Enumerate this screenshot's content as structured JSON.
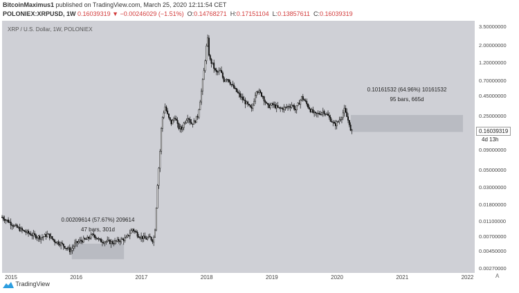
{
  "header": {
    "author": "BitcoinMaximus1",
    "published": " published on TradingView.com, March 25, 2020 12:11:54 CET",
    "symbol": "POLONIEX:XRPUSD, 1W",
    "last": "0.16039319",
    "change": "▼ −0.00246029 (−1.51%)",
    "o_label": "O:",
    "o_val": "0.14768271",
    "h_label": "H:",
    "h_val": "0.17151104",
    "l_label": "L:",
    "l_val": "0.13857611",
    "c_label": "C:",
    "c_val": "0.16039319"
  },
  "chart_data": {
    "type": "candlestick",
    "title": "XRP / U.S. Dollar, 1W, POLONIEX",
    "y_scale": "log",
    "ylim": [
      0.0024,
      4.2
    ],
    "y_ticks": [
      {
        "value": 3.5,
        "label": "3.50000000"
      },
      {
        "value": 2.0,
        "label": "2.00000000"
      },
      {
        "value": 1.2,
        "label": "1.20000000"
      },
      {
        "value": 0.7,
        "label": "0.70000000"
      },
      {
        "value": 0.45,
        "label": "0.45000000"
      },
      {
        "value": 0.25,
        "label": "0.25000000"
      },
      {
        "value": 0.09,
        "label": "0.09000000"
      },
      {
        "value": 0.05,
        "label": "0.05000000"
      },
      {
        "value": 0.03,
        "label": "0.03000000"
      },
      {
        "value": 0.018,
        "label": "0.01800000"
      },
      {
        "value": 0.011,
        "label": "0.01100000"
      },
      {
        "value": 0.007,
        "label": "0.00700000"
      },
      {
        "value": 0.0045,
        "label": "0.00450000"
      },
      {
        "value": 0.0027,
        "label": "0.00270000"
      }
    ],
    "x_ticks": [
      "2015",
      "2016",
      "2017",
      "2018",
      "2019",
      "2020",
      "2021",
      "2022"
    ],
    "x_tick_years": [
      2015.0,
      2016.0,
      2017.0,
      2018.0,
      2019.0,
      2020.0,
      2021.0,
      2022.0
    ],
    "xlim": [
      2014.85,
      2022.1
    ],
    "series": [
      {
        "points": [
          [
            2014.85,
            0.0125
          ],
          [
            2014.95,
            0.011
          ],
          [
            2015.05,
            0.0095
          ],
          [
            2015.15,
            0.0085
          ],
          [
            2015.25,
            0.0078
          ],
          [
            2015.35,
            0.0072
          ],
          [
            2015.45,
            0.0068
          ],
          [
            2015.55,
            0.0075
          ],
          [
            2015.65,
            0.0062
          ],
          [
            2015.75,
            0.0057
          ],
          [
            2015.82,
            0.0052
          ],
          [
            2015.9,
            0.0046
          ],
          [
            2015.97,
            0.0057
          ],
          [
            2016.05,
            0.0062
          ],
          [
            2016.15,
            0.0065
          ],
          [
            2016.25,
            0.0075
          ],
          [
            2016.35,
            0.0062
          ],
          [
            2016.45,
            0.0061
          ],
          [
            2016.55,
            0.0059
          ],
          [
            2016.65,
            0.0063
          ],
          [
            2016.75,
            0.0066
          ],
          [
            2016.85,
            0.0088
          ],
          [
            2016.95,
            0.0072
          ],
          [
            2017.05,
            0.0066
          ],
          [
            2017.12,
            0.0068
          ],
          [
            2017.17,
            0.0062
          ],
          [
            2017.2,
            0.0095
          ],
          [
            2017.23,
            0.03
          ],
          [
            2017.27,
            0.08
          ],
          [
            2017.3,
            0.22
          ],
          [
            2017.35,
            0.33
          ],
          [
            2017.4,
            0.24
          ],
          [
            2017.45,
            0.2
          ],
          [
            2017.5,
            0.25
          ],
          [
            2017.55,
            0.18
          ],
          [
            2017.6,
            0.17
          ],
          [
            2017.65,
            0.21
          ],
          [
            2017.7,
            0.25
          ],
          [
            2017.75,
            0.2
          ],
          [
            2017.8,
            0.21
          ],
          [
            2017.85,
            0.25
          ],
          [
            2017.9,
            0.46
          ],
          [
            2017.95,
            1.0
          ],
          [
            2018.0,
            2.6
          ],
          [
            2018.03,
            1.35
          ],
          [
            2018.08,
            1.15
          ],
          [
            2018.13,
            0.9
          ],
          [
            2018.2,
            0.95
          ],
          [
            2018.25,
            0.72
          ],
          [
            2018.3,
            0.78
          ],
          [
            2018.4,
            0.58
          ],
          [
            2018.5,
            0.45
          ],
          [
            2018.6,
            0.36
          ],
          [
            2018.68,
            0.3
          ],
          [
            2018.75,
            0.55
          ],
          [
            2018.85,
            0.45
          ],
          [
            2018.92,
            0.33
          ],
          [
            2019.0,
            0.35
          ],
          [
            2019.1,
            0.31
          ],
          [
            2019.2,
            0.32
          ],
          [
            2019.3,
            0.35
          ],
          [
            2019.35,
            0.3
          ],
          [
            2019.45,
            0.44
          ],
          [
            2019.5,
            0.38
          ],
          [
            2019.58,
            0.3
          ],
          [
            2019.65,
            0.26
          ],
          [
            2019.72,
            0.27
          ],
          [
            2019.78,
            0.29
          ],
          [
            2019.85,
            0.25
          ],
          [
            2019.9,
            0.22
          ],
          [
            2019.95,
            0.19
          ],
          [
            2020.0,
            0.21
          ],
          [
            2020.05,
            0.24
          ],
          [
            2020.1,
            0.3
          ],
          [
            2020.15,
            0.23
          ],
          [
            2020.18,
            0.2
          ],
          [
            2020.2,
            0.15
          ],
          [
            2020.22,
            0.16
          ]
        ]
      }
    ],
    "annotations": [
      {
        "text": "0.00209614 (57.67%) 209614",
        "text2": "47 bars, 301d",
        "x0": 2015.92,
        "x1": 2016.72,
        "y_low": 0.0036,
        "y_high": 0.0057
      },
      {
        "text": "0.10161532 (64.96%) 10161532",
        "text2": "95 bars, 665d",
        "x0": 2020.2,
        "x1": 2021.92,
        "y_low": 0.156,
        "y_high": 0.258
      }
    ],
    "last_price": {
      "value": 0.16039319,
      "label": "0.16039319",
      "countdown": "4d 13h"
    }
  },
  "footer": {
    "logo_text": "TradingView",
    "auto_scale": "A"
  },
  "colors": {
    "plot_bg": "#cfd0d6",
    "candle": "#111111",
    "measure_box": "#b5b7be",
    "down": "#d23a3a"
  }
}
